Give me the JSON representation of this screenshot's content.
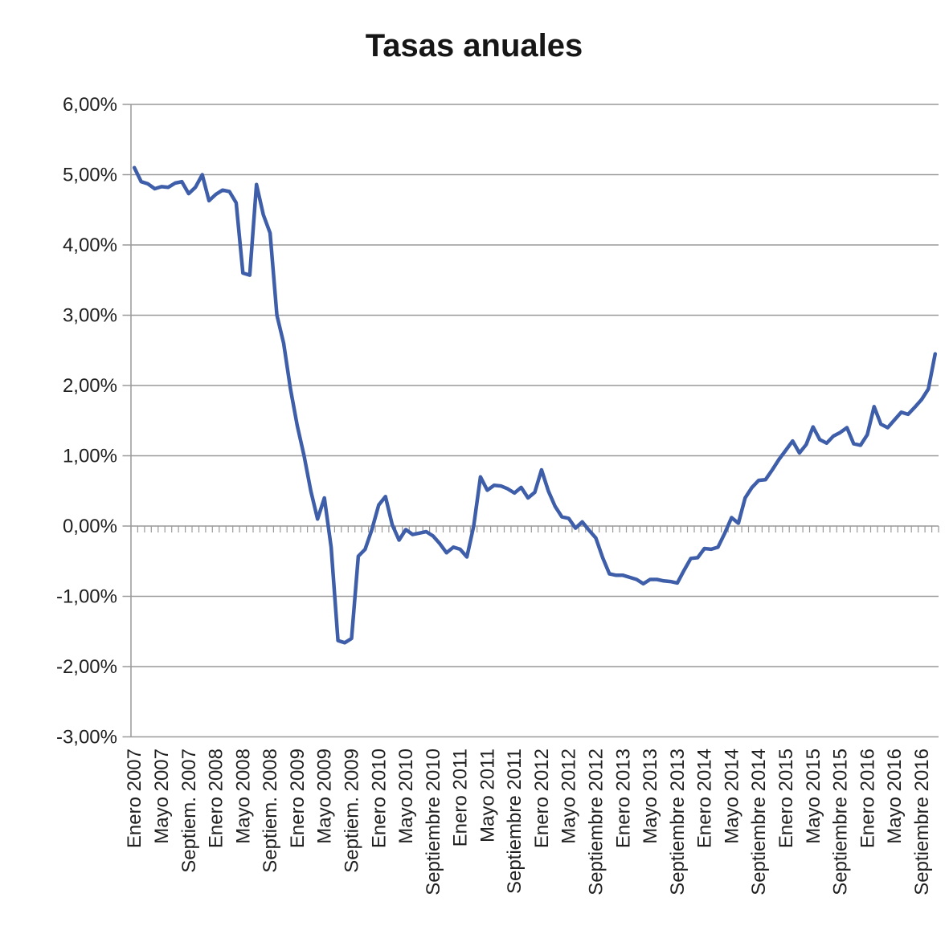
{
  "title": "Tasas anuales",
  "y_axis": {
    "tick_labels": [
      "6,00%",
      "5,00%",
      "4,00%",
      "3,00%",
      "2,00%",
      "1,00%",
      "0,00%",
      "-1,00%",
      "-2,00%",
      "-3,00%"
    ],
    "max": 6,
    "min": -3,
    "step": 1
  },
  "x_axis": {
    "tick_labels": [
      "Enero 2007",
      "Mayo 2007",
      "Septiem. 2007",
      "Enero 2008",
      "Mayo 2008",
      "Septiem. 2008",
      "Enero 2009",
      "Mayo 2009",
      "Septiem. 2009",
      "Enero 2010",
      "Mayo 2010",
      "Septiembre 2010",
      "Enero 2011",
      "Mayo 2011",
      "Septiembre 2011",
      "Enero 2012",
      "Mayo 2012",
      "Septiembre 2012",
      "Enero 2013",
      "Mayo 2013",
      "Septiembre 2013",
      "Enero 2014",
      "Mayo 2014",
      "Septiembre 2014",
      "Enero 2015",
      "Mayo 2015",
      "Septiembre 2015",
      "Enero 2016",
      "Mayo 2016",
      "Septiembre 2016"
    ],
    "months_per_tick": 4
  },
  "chart_data": {
    "type": "line",
    "title": "Tasas anuales",
    "unit": "percent",
    "x_frequency": "monthly",
    "x_start": "Enero 2007",
    "x_end": "Noviembre 2016",
    "x_tick_labels": [
      "Enero 2007",
      "Mayo 2007",
      "Septiem. 2007",
      "Enero 2008",
      "Mayo 2008",
      "Septiem. 2008",
      "Enero 2009",
      "Mayo 2009",
      "Septiem. 2009",
      "Enero 2010",
      "Mayo 2010",
      "Septiembre 2010",
      "Enero 2011",
      "Mayo 2011",
      "Septiembre 2011",
      "Enero 2012",
      "Mayo 2012",
      "Septiembre 2012",
      "Enero 2013",
      "Mayo 2013",
      "Septiembre 2013",
      "Enero 2014",
      "Mayo 2014",
      "Septiembre 2014",
      "Enero 2015",
      "Mayo 2015",
      "Septiembre 2015",
      "Enero 2016",
      "Mayo 2016",
      "Septiembre 2016"
    ],
    "months_per_tick": 4,
    "ylim": [
      -3,
      6
    ],
    "y_tick_step": 1,
    "grid": true,
    "legend": "none",
    "line_color": "#3E5EA9",
    "grid_color": "#999999",
    "text_color": "#1f1f1f",
    "values": [
      5.1,
      4.9,
      4.87,
      4.8,
      4.83,
      4.82,
      4.88,
      4.9,
      4.73,
      4.82,
      5.0,
      4.63,
      4.72,
      4.78,
      4.76,
      4.6,
      3.6,
      3.57,
      4.86,
      4.43,
      4.17,
      3.0,
      2.6,
      1.95,
      1.43,
      1.0,
      0.5,
      0.1,
      0.4,
      -0.3,
      -1.63,
      -1.66,
      -1.6,
      -0.43,
      -0.33,
      -0.05,
      0.3,
      0.42,
      0.02,
      -0.2,
      -0.05,
      -0.12,
      -0.1,
      -0.08,
      -0.14,
      -0.25,
      -0.38,
      -0.3,
      -0.33,
      -0.44,
      0.0,
      0.7,
      0.51,
      0.58,
      0.57,
      0.53,
      0.47,
      0.55,
      0.4,
      0.48,
      0.8,
      0.5,
      0.28,
      0.13,
      0.11,
      -0.03,
      0.06,
      -0.06,
      -0.17,
      -0.45,
      -0.68,
      -0.7,
      -0.7,
      -0.73,
      -0.76,
      -0.82,
      -0.76,
      -0.76,
      -0.78,
      -0.79,
      -0.81,
      -0.63,
      -0.46,
      -0.45,
      -0.32,
      -0.33,
      -0.3,
      -0.1,
      0.12,
      0.04,
      0.4,
      0.55,
      0.65,
      0.66,
      0.8,
      0.95,
      1.08,
      1.21,
      1.04,
      1.16,
      1.41,
      1.23,
      1.18,
      1.28,
      1.33,
      1.4,
      1.17,
      1.15,
      1.3,
      1.7,
      1.45,
      1.4,
      1.51,
      1.62,
      1.59,
      1.69,
      1.8,
      1.95,
      2.45
    ]
  }
}
